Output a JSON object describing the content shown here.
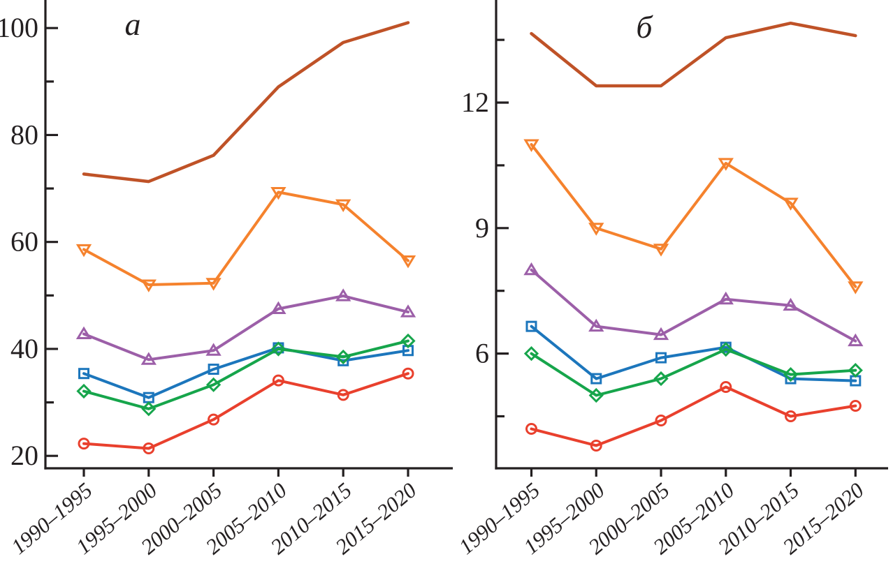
{
  "figure": {
    "background": "#ffffff",
    "axis_color": "#231f20"
  },
  "chart_data": [
    {
      "type": "line",
      "panel_label": "a",
      "categories": [
        "1990–1995",
        "1995–2000",
        "2000–2005",
        "2005–2010",
        "2010–2015",
        "2015–2020"
      ],
      "ylim": [
        19,
        105
      ],
      "yticks_major": [
        20,
        40,
        60,
        80,
        100
      ],
      "yticks_minor": [
        30,
        50,
        70,
        90
      ],
      "grid": "off",
      "legend": "none",
      "series": [
        {
          "name": "series-1-no-marker",
          "marker": "none",
          "color": "#bf5227",
          "values": [
            72.7,
            71.3,
            76.2,
            89.0,
            97.3,
            101.0
          ]
        },
        {
          "name": "series-2-triangle-down",
          "marker": "triangle-down",
          "color": "#f5822d",
          "values": [
            58.6,
            52.0,
            52.3,
            69.3,
            67.0,
            56.5
          ]
        },
        {
          "name": "series-3-triangle-up",
          "marker": "triangle-up",
          "color": "#9c5fa8",
          "values": [
            42.8,
            38.0,
            39.7,
            47.5,
            49.9,
            46.9
          ]
        },
        {
          "name": "series-4-square",
          "marker": "square",
          "color": "#1c76bc",
          "values": [
            35.4,
            30.9,
            36.2,
            40.2,
            37.8,
            39.7
          ]
        },
        {
          "name": "series-5-diamond",
          "marker": "diamond",
          "color": "#16a54b",
          "values": [
            32.1,
            28.8,
            33.3,
            40.0,
            38.5,
            41.5
          ]
        },
        {
          "name": "series-6-circle",
          "marker": "circle",
          "color": "#e9402d",
          "values": [
            22.3,
            21.4,
            26.8,
            34.1,
            31.4,
            35.4
          ]
        }
      ]
    },
    {
      "type": "line",
      "panel_label": "б",
      "categories": [
        "1990–1995",
        "1995–2000",
        "2000–2005",
        "2005–2010",
        "2010–2015",
        "2015–2020"
      ],
      "ylim": [
        3.3,
        14.2
      ],
      "yticks_major": [
        6,
        9,
        12
      ],
      "yticks_minor": [
        4.5,
        7.5,
        10.5,
        13.5
      ],
      "grid": "off",
      "legend": "none",
      "series": [
        {
          "name": "series-1-no-marker",
          "marker": "none",
          "color": "#bf5227",
          "values": [
            13.65,
            12.4,
            12.4,
            13.55,
            13.9,
            13.6
          ]
        },
        {
          "name": "series-2-triangle-down",
          "marker": "triangle-down",
          "color": "#f5822d",
          "values": [
            11.0,
            9.0,
            8.5,
            10.55,
            9.6,
            7.6
          ]
        },
        {
          "name": "series-3-triangle-up",
          "marker": "triangle-up",
          "color": "#9c5fa8",
          "values": [
            8.0,
            6.65,
            6.45,
            7.3,
            7.15,
            6.3
          ]
        },
        {
          "name": "series-4-square",
          "marker": "square",
          "color": "#1c76bc",
          "values": [
            6.65,
            5.4,
            5.9,
            6.15,
            5.4,
            5.35
          ]
        },
        {
          "name": "series-5-diamond",
          "marker": "diamond",
          "color": "#16a54b",
          "values": [
            6.0,
            5.0,
            5.4,
            6.1,
            5.5,
            5.6
          ]
        },
        {
          "name": "series-6-circle",
          "marker": "circle",
          "color": "#e9402d",
          "values": [
            4.2,
            3.8,
            4.4,
            5.2,
            4.5,
            4.75
          ]
        }
      ]
    }
  ]
}
